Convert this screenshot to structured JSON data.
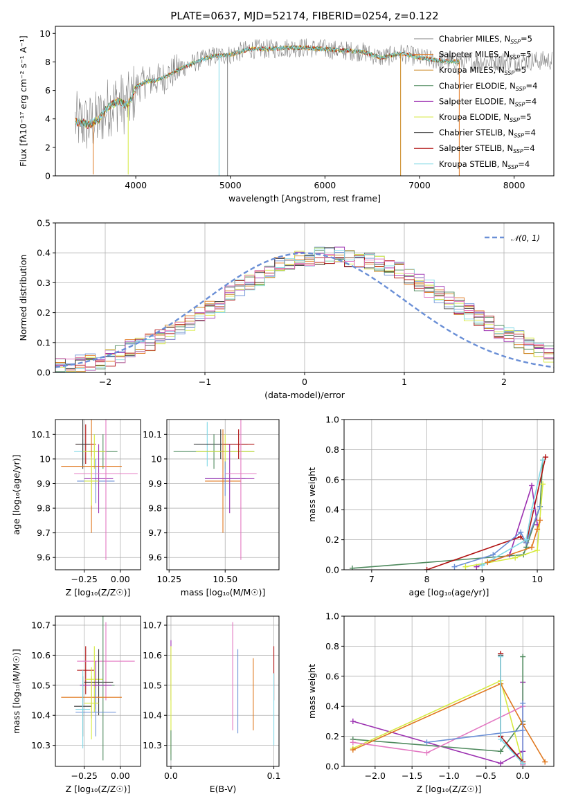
{
  "figure_title": "PLATE=0637, MJD=52174, FIBERID=0254, z=0.122",
  "colors": {
    "Chabrier MILES": "#6a8fd6",
    "Salpeter MILES": "#e0781f",
    "Kroupa MILES": "#c9841a",
    "Chabrier ELODIE": "#4f8a5e",
    "Salpeter ELODIE": "#9b2fb0",
    "Kroupa ELODIE": "#d6ea40",
    "Chabrier STELIB": "#3a3a3a",
    "Salpeter STELIB": "#b01010",
    "Kroupa STELIB": "#80d8e6",
    "pink": "#e378c2",
    "gray": "#808080"
  },
  "chart_data": [
    {
      "id": "spectrum",
      "type": "line",
      "xlabel": "wavelength [Angstrom, rest frame]",
      "ylabel": "Flux [fλ10⁻¹⁷ erg cm⁻² s⁻¹ A⁻¹]",
      "xlim": [
        3150,
        8420
      ],
      "ylim": [
        0,
        10.5
      ],
      "xticks": [
        4000,
        5000,
        6000,
        7000,
        8000
      ],
      "yticks": [
        0,
        2,
        4,
        6,
        8,
        10
      ],
      "grid": false,
      "legend_position": "right",
      "legend": [
        {
          "base": "Chabrier MILES, N",
          "sub": "SSP",
          "tail": "=5",
          "color_key": "gray"
        },
        {
          "base": "Salpeter MILES, N",
          "sub": "SSP",
          "tail": "=5",
          "color_key": "Salpeter MILES"
        },
        {
          "base": "Kroupa MILES, N",
          "sub": "SSP",
          "tail": "=5",
          "color_key": "Kroupa MILES"
        },
        {
          "base": "Chabrier ELODIE, N",
          "sub": "SSP",
          "tail": "=4",
          "color_key": "Chabrier ELODIE"
        },
        {
          "base": "Salpeter ELODIE, N",
          "sub": "SSP",
          "tail": "=4",
          "color_key": "Salpeter ELODIE"
        },
        {
          "base": "Kroupa ELODIE, N",
          "sub": "SSP",
          "tail": "=5",
          "color_key": "Kroupa ELODIE"
        },
        {
          "base": "Chabrier STELIB, N",
          "sub": "SSP",
          "tail": "=4",
          "color_key": "Chabrier STELIB"
        },
        {
          "base": "Salpeter STELIB, N",
          "sub": "SSP",
          "tail": "=4",
          "color_key": "Salpeter STELIB"
        },
        {
          "base": "Kroupa STELIB, N",
          "sub": "SSP",
          "tail": "=4",
          "color_key": "Kroupa STELIB"
        }
      ],
      "continuum": [
        [
          3360,
          3.8
        ],
        [
          3500,
          3.6
        ],
        [
          3600,
          3.9
        ],
        [
          3700,
          4.8
        ],
        [
          3800,
          5.2
        ],
        [
          3900,
          5.0
        ],
        [
          3950,
          5.3
        ],
        [
          4000,
          6.2
        ],
        [
          4100,
          6.6
        ],
        [
          4200,
          6.7
        ],
        [
          4300,
          6.9
        ],
        [
          4400,
          7.3
        ],
        [
          4600,
          7.9
        ],
        [
          4800,
          8.4
        ],
        [
          5000,
          8.5
        ],
        [
          5200,
          8.9
        ],
        [
          5400,
          8.9
        ],
        [
          5600,
          9.0
        ],
        [
          5800,
          9.0
        ],
        [
          6000,
          8.9
        ],
        [
          6200,
          8.8
        ],
        [
          6400,
          8.7
        ],
        [
          6600,
          8.3
        ],
        [
          6800,
          8.6
        ],
        [
          7000,
          8.3
        ],
        [
          7200,
          8.1
        ],
        [
          7420,
          8.0
        ]
      ],
      "gray_continuum_extent": [
        3560,
        8400
      ],
      "spikes": [
        {
          "x": 3550,
          "y": 0.1,
          "color_key": "Salpeter MILES"
        },
        {
          "x": 3920,
          "y": 0.1,
          "color_key": "Kroupa ELODIE"
        },
        {
          "x": 4880,
          "y": 0.0,
          "color_key": "Kroupa STELIB"
        },
        {
          "x": 4970,
          "y": 0.0,
          "color_key": "gray"
        },
        {
          "x": 6800,
          "y": 0.0,
          "color_key": "Kroupa MILES"
        },
        {
          "x": 7420,
          "y": 0.0,
          "color_key": "Salpeter MILES"
        }
      ]
    },
    {
      "id": "residuals",
      "type": "histogram",
      "xlabel": "(data-model)/error",
      "ylabel": "Normed distribution",
      "xlim": [
        -2.5,
        2.5
      ],
      "ylim": [
        0,
        0.5
      ],
      "xticks": [
        -2,
        -1,
        0,
        1,
        2
      ],
      "yticks": [
        0.0,
        0.1,
        0.2,
        0.3,
        0.4,
        0.5
      ],
      "grid": true,
      "legend_position": "top-right",
      "legend_label": "𝒩(0, 1)",
      "bin_width": 0.1,
      "bin_start": -2.5,
      "envelope": [
        0.02,
        0.025,
        0.03,
        0.035,
        0.04,
        0.05,
        0.06,
        0.08,
        0.09,
        0.1,
        0.12,
        0.13,
        0.15,
        0.17,
        0.19,
        0.21,
        0.23,
        0.26,
        0.28,
        0.3,
        0.32,
        0.34,
        0.36,
        0.37,
        0.38,
        0.385,
        0.39,
        0.39,
        0.39,
        0.38,
        0.375,
        0.37,
        0.36,
        0.35,
        0.34,
        0.32,
        0.3,
        0.28,
        0.26,
        0.24,
        0.22,
        0.2,
        0.18,
        0.16,
        0.14,
        0.12,
        0.11,
        0.09,
        0.08,
        0.06,
        0.055,
        0.045,
        0.04,
        0.035,
        0.03,
        0.028,
        0.025,
        0.022,
        0.02,
        0.018
      ],
      "series_color_keys": [
        "Chabrier MILES",
        "Salpeter MILES",
        "Kroupa MILES",
        "Chabrier ELODIE",
        "Salpeter ELODIE",
        "Kroupa ELODIE",
        "Chabrier STELIB",
        "Salpeter STELIB",
        "Kroupa STELIB",
        "pink"
      ]
    },
    {
      "id": "age-vs-Z",
      "type": "errorbar",
      "xlabel": "Z [log₁₀(Z/Z☉)]",
      "ylabel": "age  [log₁₀(age/yr)]",
      "xlim": [
        -0.45,
        0.14
      ],
      "ylim": [
        9.55,
        10.16
      ],
      "xticks": [
        -0.25,
        0.0
      ],
      "xtick_labels": [
        "−0.25",
        "0.00"
      ],
      "yticks": [
        9.6,
        9.7,
        9.8,
        9.9,
        10.0,
        10.1
      ],
      "grid": true,
      "points": [
        {
          "x": -0.26,
          "y": 10.03,
          "xerr": 0.06,
          "yerr": 0.05,
          "color_key": "Kroupa STELIB"
        },
        {
          "x": -0.24,
          "y": 10.06,
          "xerr": 0.07,
          "yerr": 0.08,
          "color_key": "Salpeter STELIB"
        },
        {
          "x": -0.12,
          "y": 10.03,
          "xerr": 0.1,
          "yerr": 0.07,
          "color_key": "Chabrier ELODIE"
        },
        {
          "x": -0.26,
          "y": 10.06,
          "xerr": 0.05,
          "yerr": 0.1,
          "color_key": "Chabrier STELIB"
        },
        {
          "x": -0.18,
          "y": 10.03,
          "xerr": 0.08,
          "yerr": 0.07,
          "color_key": "Kroupa ELODIE"
        },
        {
          "x": -0.2,
          "y": 9.97,
          "xerr": 0.21,
          "yerr": 0.27,
          "color_key": "Salpeter MILES"
        },
        {
          "x": -0.17,
          "y": 9.91,
          "xerr": 0.13,
          "yerr": 0.09,
          "color_key": "Chabrier MILES"
        },
        {
          "x": -0.15,
          "y": 9.92,
          "xerr": 0.1,
          "yerr": 0.14,
          "color_key": "Salpeter ELODIE"
        },
        {
          "x": -0.1,
          "y": 9.94,
          "xerr": 0.22,
          "yerr": 0.35,
          "color_key": "pink"
        },
        {
          "x": -0.2,
          "y": 9.91,
          "xerr": 0.05,
          "yerr": 0.1,
          "color_key": "Kroupa ELODIE"
        }
      ]
    },
    {
      "id": "age-vs-mass",
      "type": "errorbar",
      "xlabel": "mass [log₁₀(M/M☉)]",
      "ylabel": "",
      "xlim": [
        10.24,
        10.74
      ],
      "ylim": [
        9.55,
        10.16
      ],
      "xticks": [
        10.25,
        10.5
      ],
      "xtick_labels": [
        "10.25",
        "10.50"
      ],
      "yticks": [
        9.6,
        9.7,
        9.8,
        9.9,
        10.0,
        10.1
      ],
      "grid": true,
      "points": [
        {
          "x": 10.42,
          "y": 10.06,
          "xerr": 0.05,
          "yerr": 0.09,
          "color_key": "Kroupa STELIB"
        },
        {
          "x": 10.48,
          "y": 10.06,
          "xerr": 0.12,
          "yerr": 0.06,
          "color_key": "Chabrier STELIB"
        },
        {
          "x": 10.45,
          "y": 10.03,
          "xerr": 0.18,
          "yerr": 0.07,
          "color_key": "Chabrier ELODIE"
        },
        {
          "x": 10.5,
          "y": 10.03,
          "xerr": 0.13,
          "yerr": 0.07,
          "color_key": "Kroupa ELODIE"
        },
        {
          "x": 10.56,
          "y": 10.06,
          "xerr": 0.07,
          "yerr": 0.06,
          "color_key": "Salpeter STELIB"
        },
        {
          "x": 10.49,
          "y": 9.91,
          "xerr": 0.08,
          "yerr": 0.21,
          "color_key": "Salpeter MILES"
        },
        {
          "x": 10.5,
          "y": 9.92,
          "xerr": 0.09,
          "yerr": 0.07,
          "color_key": "Chabrier MILES"
        },
        {
          "x": 10.52,
          "y": 9.92,
          "xerr": 0.11,
          "yerr": 0.14,
          "color_key": "Salpeter ELODIE"
        },
        {
          "x": 10.57,
          "y": 9.94,
          "xerr": 0.07,
          "yerr": 0.35,
          "color_key": "pink"
        }
      ]
    },
    {
      "id": "mass-weight-vs-age",
      "type": "line",
      "xlabel": "age  [log₁₀(age/yr)]",
      "ylabel": "mass weight",
      "xlim": [
        6.5,
        10.3
      ],
      "ylim": [
        0,
        1.0
      ],
      "xticks": [
        7,
        8,
        9,
        10
      ],
      "yticks": [
        0.0,
        0.2,
        0.4,
        0.6,
        0.8,
        1.0
      ],
      "grid": true,
      "series": [
        {
          "color_key": "Chabrier ELODIE",
          "x": [
            6.65,
            9.75,
            9.8,
            10.05,
            10.1
          ],
          "y": [
            0.01,
            0.1,
            0.15,
            0.42,
            0.73
          ]
        },
        {
          "color_key": "Salpeter ELODIE",
          "x": [
            8.9,
            9.5,
            9.9,
            10.0
          ],
          "y": [
            0.02,
            0.1,
            0.56,
            0.3
          ]
        },
        {
          "color_key": "Salpeter STELIB",
          "x": [
            8.0,
            9.7,
            9.8,
            10.15
          ],
          "y": [
            0.0,
            0.22,
            0.18,
            0.75
          ]
        },
        {
          "color_key": "Chabrier MILES",
          "x": [
            8.5,
            9.2,
            9.7,
            9.8,
            10.05
          ],
          "y": [
            0.02,
            0.1,
            0.25,
            0.18,
            0.42
          ]
        },
        {
          "color_key": "Kroupa ELODIE",
          "x": [
            8.7,
            9.6,
            10.0,
            10.1
          ],
          "y": [
            0.02,
            0.08,
            0.13,
            0.57
          ]
        },
        {
          "color_key": "Kroupa STELIB",
          "x": [
            9.0,
            9.8,
            9.9,
            10.1
          ],
          "y": [
            0.03,
            0.2,
            0.4,
            0.73
          ]
        },
        {
          "color_key": "Salpeter MILES",
          "x": [
            9.1,
            9.9,
            10.0,
            10.05
          ],
          "y": [
            0.05,
            0.15,
            0.27,
            0.33
          ]
        }
      ]
    },
    {
      "id": "mass-vs-Z",
      "type": "errorbar",
      "xlabel": "Z [log₁₀(Z/Z☉)]",
      "ylabel": "mass [log₁₀(M/M☉)]",
      "xlim": [
        -0.45,
        0.14
      ],
      "ylim": [
        10.23,
        10.73
      ],
      "xticks": [
        -0.25,
        0.0
      ],
      "xtick_labels": [
        "−0.25",
        "0.00"
      ],
      "yticks": [
        10.3,
        10.4,
        10.5,
        10.6,
        10.7
      ],
      "grid": true,
      "points": [
        {
          "x": -0.24,
          "y": 10.55,
          "xerr": 0.06,
          "yerr": 0.08,
          "color_key": "Salpeter STELIB"
        },
        {
          "x": -0.1,
          "y": 10.58,
          "xerr": 0.2,
          "yerr": 0.13,
          "color_key": "pink"
        },
        {
          "x": -0.18,
          "y": 10.52,
          "xerr": 0.06,
          "yerr": 0.11,
          "color_key": "Kroupa ELODIE"
        },
        {
          "x": -0.15,
          "y": 10.51,
          "xerr": 0.1,
          "yerr": 0.11,
          "color_key": "Chabrier STELIB"
        },
        {
          "x": -0.12,
          "y": 10.5,
          "xerr": 0.08,
          "yerr": 0.25,
          "color_key": "Chabrier ELODIE"
        },
        {
          "x": -0.17,
          "y": 10.5,
          "xerr": 0.11,
          "yerr": 0.08,
          "color_key": "Salpeter ELODIE"
        },
        {
          "x": -0.2,
          "y": 10.46,
          "xerr": 0.21,
          "yerr": 0.07,
          "color_key": "Salpeter MILES"
        },
        {
          "x": -0.26,
          "y": 10.43,
          "xerr": 0.06,
          "yerr": 0.1,
          "color_key": "Chabrier STELIB"
        },
        {
          "x": -0.17,
          "y": 10.41,
          "xerr": 0.14,
          "yerr": 0.08,
          "color_key": "Chabrier MILES"
        },
        {
          "x": -0.26,
          "y": 10.42,
          "xerr": 0.05,
          "yerr": 0.13,
          "color_key": "Kroupa STELIB"
        },
        {
          "x": -0.2,
          "y": 10.44,
          "xerr": 0.05,
          "yerr": 0.12,
          "color_key": "Kroupa ELODIE"
        }
      ]
    },
    {
      "id": "mass-vs-EBV",
      "type": "errorbar",
      "xlabel": "E(B-V)",
      "ylabel": "",
      "xlim": [
        -0.004,
        0.105
      ],
      "ylim": [
        10.23,
        10.73
      ],
      "xticks": [
        0.0,
        0.1
      ],
      "xtick_labels": [
        "0.0",
        "0.1"
      ],
      "yticks": [
        10.3,
        10.4,
        10.5,
        10.6,
        10.7
      ],
      "grid": true,
      "points": [
        {
          "x": 0.0,
          "y": 10.55,
          "xerr": 0,
          "yerr": 0.1,
          "color_key": "Salpeter ELODIE"
        },
        {
          "x": 0.0,
          "y": 10.45,
          "xerr": 0,
          "yerr": 0.18,
          "color_key": "Kroupa ELODIE"
        },
        {
          "x": 0.0,
          "y": 10.3,
          "xerr": 0,
          "yerr": 0.05,
          "color_key": "Chabrier ELODIE"
        },
        {
          "x": 0.06,
          "y": 10.53,
          "xerr": 0,
          "yerr": 0.18,
          "color_key": "pink"
        },
        {
          "x": 0.065,
          "y": 10.48,
          "xerr": 0,
          "yerr": 0.14,
          "color_key": "Chabrier MILES"
        },
        {
          "x": 0.08,
          "y": 10.47,
          "xerr": 0,
          "yerr": 0.12,
          "color_key": "Salpeter MILES"
        },
        {
          "x": 0.1,
          "y": 10.54,
          "xerr": 0,
          "yerr": 0.09,
          "color_key": "Salpeter STELIB"
        },
        {
          "x": 0.1,
          "y": 10.42,
          "xerr": 0,
          "yerr": 0.12,
          "color_key": "Kroupa STELIB"
        }
      ]
    },
    {
      "id": "mass-weight-vs-Z",
      "type": "line",
      "xlabel": "Z [log₁₀(Z/Z☉)]",
      "ylabel": "mass weight",
      "xlim": [
        -2.42,
        0.42
      ],
      "ylim": [
        0,
        1.0
      ],
      "xticks": [
        -2.0,
        -1.5,
        -1.0,
        -0.5,
        0.0
      ],
      "xtick_labels": [
        "−2.0",
        "−1.5",
        "−1.0",
        "−0.5",
        "0.0"
      ],
      "yticks": [
        0.0,
        0.2,
        0.4,
        0.6,
        0.8,
        1.0
      ],
      "grid": true,
      "series": [
        {
          "color_key": "Salpeter ELODIE",
          "x": [
            -2.3,
            -0.3,
            0.0,
            0.0
          ],
          "y": [
            0.3,
            0.02,
            0.1,
            0.56
          ]
        },
        {
          "color_key": "Chabrier ELODIE",
          "x": [
            -2.3,
            -0.3,
            0.0,
            0.0
          ],
          "y": [
            0.18,
            0.1,
            0.3,
            0.73
          ]
        },
        {
          "color_key": "Kroupa ELODIE",
          "x": [
            -2.3,
            -0.3,
            0.0
          ],
          "y": [
            0.12,
            0.57,
            0.02
          ]
        },
        {
          "color_key": "Salpeter MILES",
          "x": [
            -2.3,
            -0.3,
            0.0,
            0.3
          ],
          "y": [
            0.11,
            0.55,
            0.28,
            0.03
          ]
        },
        {
          "color_key": "pink",
          "x": [
            -2.3,
            -1.3,
            0.0,
            0.0
          ],
          "y": [
            0.16,
            0.09,
            0.4,
            0.01
          ]
        },
        {
          "color_key": "Chabrier MILES",
          "x": [
            -1.3,
            0.0,
            0.0,
            0.0
          ],
          "y": [
            0.16,
            0.24,
            0.42,
            0.02
          ]
        },
        {
          "color_key": "Chabrier STELIB",
          "x": [
            -0.3,
            -0.3,
            0.0
          ],
          "y": [
            0.74,
            0.2,
            0.02
          ]
        },
        {
          "color_key": "Salpeter STELIB",
          "x": [
            -0.3,
            -0.3,
            0.0
          ],
          "y": [
            0.75,
            0.2,
            0.03
          ]
        },
        {
          "color_key": "Kroupa STELIB",
          "x": [
            -0.3,
            -0.3,
            0.0
          ],
          "y": [
            0.73,
            0.18,
            0.02
          ]
        }
      ]
    }
  ]
}
